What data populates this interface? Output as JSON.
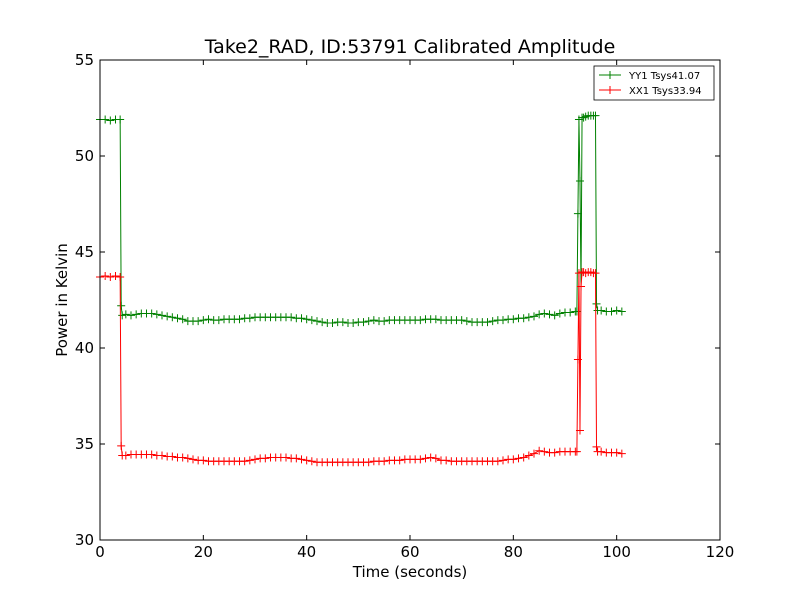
{
  "chart_data": {
    "type": "line",
    "title": "Take2_RAD, ID:53791 Calibrated Amplitude",
    "xlabel": "Time (seconds)",
    "ylabel": "Power in Kelvin",
    "xlim": [
      0,
      120
    ],
    "ylim": [
      30,
      55
    ],
    "xticks": [
      0,
      20,
      40,
      60,
      80,
      100,
      120
    ],
    "yticks": [
      30,
      35,
      40,
      45,
      50,
      55
    ],
    "grid": false,
    "legend_position": "top-right",
    "marker": "+",
    "series": [
      {
        "name": "YY1 Tsys41.07",
        "color": "#008000",
        "points": [
          [
            0,
            51.9
          ],
          [
            1,
            51.9
          ],
          [
            2,
            51.85
          ],
          [
            3,
            51.9
          ],
          [
            3.9,
            51.9
          ],
          [
            4.1,
            42.2
          ],
          [
            4.3,
            41.7
          ],
          [
            5,
            41.75
          ],
          [
            6,
            41.7
          ],
          [
            7,
            41.75
          ],
          [
            8,
            41.8
          ],
          [
            9,
            41.8
          ],
          [
            10,
            41.8
          ],
          [
            11,
            41.75
          ],
          [
            12,
            41.7
          ],
          [
            13,
            41.65
          ],
          [
            14,
            41.6
          ],
          [
            15,
            41.55
          ],
          [
            16,
            41.5
          ],
          [
            17,
            41.4
          ],
          [
            18,
            41.4
          ],
          [
            19,
            41.4
          ],
          [
            20,
            41.45
          ],
          [
            21,
            41.5
          ],
          [
            22,
            41.45
          ],
          [
            23,
            41.45
          ],
          [
            24,
            41.5
          ],
          [
            25,
            41.5
          ],
          [
            26,
            41.5
          ],
          [
            27,
            41.5
          ],
          [
            28,
            41.55
          ],
          [
            29,
            41.55
          ],
          [
            30,
            41.6
          ],
          [
            31,
            41.6
          ],
          [
            32,
            41.6
          ],
          [
            33,
            41.6
          ],
          [
            34,
            41.6
          ],
          [
            35,
            41.6
          ],
          [
            36,
            41.6
          ],
          [
            37,
            41.6
          ],
          [
            38,
            41.55
          ],
          [
            39,
            41.55
          ],
          [
            40,
            41.5
          ],
          [
            41,
            41.45
          ],
          [
            42,
            41.4
          ],
          [
            43,
            41.35
          ],
          [
            44,
            41.3
          ],
          [
            45,
            41.3
          ],
          [
            46,
            41.35
          ],
          [
            47,
            41.35
          ],
          [
            48,
            41.3
          ],
          [
            49,
            41.3
          ],
          [
            50,
            41.35
          ],
          [
            51,
            41.35
          ],
          [
            52,
            41.4
          ],
          [
            53,
            41.45
          ],
          [
            54,
            41.4
          ],
          [
            55,
            41.4
          ],
          [
            56,
            41.45
          ],
          [
            57,
            41.45
          ],
          [
            58,
            41.45
          ],
          [
            59,
            41.45
          ],
          [
            60,
            41.45
          ],
          [
            61,
            41.45
          ],
          [
            62,
            41.45
          ],
          [
            63,
            41.5
          ],
          [
            64,
            41.5
          ],
          [
            65,
            41.5
          ],
          [
            66,
            41.45
          ],
          [
            67,
            41.45
          ],
          [
            68,
            41.45
          ],
          [
            69,
            41.45
          ],
          [
            70,
            41.45
          ],
          [
            71,
            41.4
          ],
          [
            72,
            41.35
          ],
          [
            73,
            41.35
          ],
          [
            74,
            41.35
          ],
          [
            75,
            41.35
          ],
          [
            76,
            41.4
          ],
          [
            77,
            41.45
          ],
          [
            78,
            41.45
          ],
          [
            79,
            41.5
          ],
          [
            80,
            41.5
          ],
          [
            81,
            41.55
          ],
          [
            82,
            41.55
          ],
          [
            83,
            41.6
          ],
          [
            84,
            41.65
          ],
          [
            85,
            41.75
          ],
          [
            86,
            41.8
          ],
          [
            87,
            41.75
          ],
          [
            88,
            41.7
          ],
          [
            89,
            41.8
          ],
          [
            90,
            41.85
          ],
          [
            91,
            41.85
          ],
          [
            92,
            41.9
          ],
          [
            92.3,
            41.9
          ],
          [
            92.5,
            47.0
          ],
          [
            92.7,
            51.9
          ],
          [
            92.9,
            48.7
          ],
          [
            93.1,
            43.2
          ],
          [
            93.3,
            52.0
          ],
          [
            93.6,
            52.0
          ],
          [
            94,
            52.05
          ],
          [
            94.5,
            52.1
          ],
          [
            95,
            52.1
          ],
          [
            95.5,
            52.1
          ],
          [
            95.9,
            52.1
          ],
          [
            96.1,
            42.3
          ],
          [
            96.3,
            41.95
          ],
          [
            97,
            41.95
          ],
          [
            98,
            41.9
          ],
          [
            99,
            41.9
          ],
          [
            100,
            41.95
          ],
          [
            101,
            41.9
          ]
        ]
      },
      {
        "name": "XX1 Tsys33.94",
        "color": "#ff0000",
        "points": [
          [
            0,
            43.7
          ],
          [
            1,
            43.75
          ],
          [
            2,
            43.7
          ],
          [
            3,
            43.75
          ],
          [
            3.9,
            43.7
          ],
          [
            4.1,
            34.9
          ],
          [
            4.3,
            34.4
          ],
          [
            5,
            34.4
          ],
          [
            6,
            34.45
          ],
          [
            7,
            34.45
          ],
          [
            8,
            34.45
          ],
          [
            9,
            34.45
          ],
          [
            10,
            34.45
          ],
          [
            11,
            34.4
          ],
          [
            12,
            34.4
          ],
          [
            13,
            34.35
          ],
          [
            14,
            34.35
          ],
          [
            15,
            34.3
          ],
          [
            16,
            34.3
          ],
          [
            17,
            34.25
          ],
          [
            18,
            34.2
          ],
          [
            19,
            34.15
          ],
          [
            20,
            34.15
          ],
          [
            21,
            34.1
          ],
          [
            22,
            34.1
          ],
          [
            23,
            34.1
          ],
          [
            24,
            34.1
          ],
          [
            25,
            34.1
          ],
          [
            26,
            34.1
          ],
          [
            27,
            34.1
          ],
          [
            28,
            34.1
          ],
          [
            29,
            34.15
          ],
          [
            30,
            34.2
          ],
          [
            31,
            34.25
          ],
          [
            32,
            34.25
          ],
          [
            33,
            34.3
          ],
          [
            34,
            34.3
          ],
          [
            35,
            34.3
          ],
          [
            36,
            34.3
          ],
          [
            37,
            34.25
          ],
          [
            38,
            34.25
          ],
          [
            39,
            34.2
          ],
          [
            40,
            34.15
          ],
          [
            41,
            34.1
          ],
          [
            42,
            34.05
          ],
          [
            43,
            34.05
          ],
          [
            44,
            34.05
          ],
          [
            45,
            34.05
          ],
          [
            46,
            34.05
          ],
          [
            47,
            34.05
          ],
          [
            48,
            34.05
          ],
          [
            49,
            34.05
          ],
          [
            50,
            34.05
          ],
          [
            51,
            34.05
          ],
          [
            52,
            34.05
          ],
          [
            53,
            34.1
          ],
          [
            54,
            34.1
          ],
          [
            55,
            34.1
          ],
          [
            56,
            34.15
          ],
          [
            57,
            34.15
          ],
          [
            58,
            34.15
          ],
          [
            59,
            34.2
          ],
          [
            60,
            34.2
          ],
          [
            61,
            34.2
          ],
          [
            62,
            34.2
          ],
          [
            63,
            34.25
          ],
          [
            64,
            34.3
          ],
          [
            65,
            34.25
          ],
          [
            66,
            34.15
          ],
          [
            67,
            34.15
          ],
          [
            68,
            34.1
          ],
          [
            69,
            34.1
          ],
          [
            70,
            34.1
          ],
          [
            71,
            34.1
          ],
          [
            72,
            34.1
          ],
          [
            73,
            34.1
          ],
          [
            74,
            34.1
          ],
          [
            75,
            34.1
          ],
          [
            76,
            34.1
          ],
          [
            77,
            34.1
          ],
          [
            78,
            34.15
          ],
          [
            79,
            34.2
          ],
          [
            80,
            34.2
          ],
          [
            81,
            34.25
          ],
          [
            82,
            34.3
          ],
          [
            83,
            34.4
          ],
          [
            84,
            34.5
          ],
          [
            85,
            34.65
          ],
          [
            86,
            34.6
          ],
          [
            87,
            34.55
          ],
          [
            88,
            34.55
          ],
          [
            89,
            34.6
          ],
          [
            90,
            34.6
          ],
          [
            91,
            34.6
          ],
          [
            92,
            34.6
          ],
          [
            92.3,
            34.6
          ],
          [
            92.5,
            39.4
          ],
          [
            92.7,
            43.9
          ],
          [
            92.9,
            35.7
          ],
          [
            93.1,
            43.2
          ],
          [
            93.3,
            43.95
          ],
          [
            93.6,
            43.95
          ],
          [
            94,
            43.9
          ],
          [
            94.5,
            43.95
          ],
          [
            95,
            43.95
          ],
          [
            95.5,
            43.9
          ],
          [
            95.9,
            43.9
          ],
          [
            96.1,
            34.85
          ],
          [
            96.3,
            34.6
          ],
          [
            97,
            34.6
          ],
          [
            98,
            34.55
          ],
          [
            99,
            34.55
          ],
          [
            100,
            34.55
          ],
          [
            101,
            34.5
          ]
        ]
      }
    ]
  }
}
